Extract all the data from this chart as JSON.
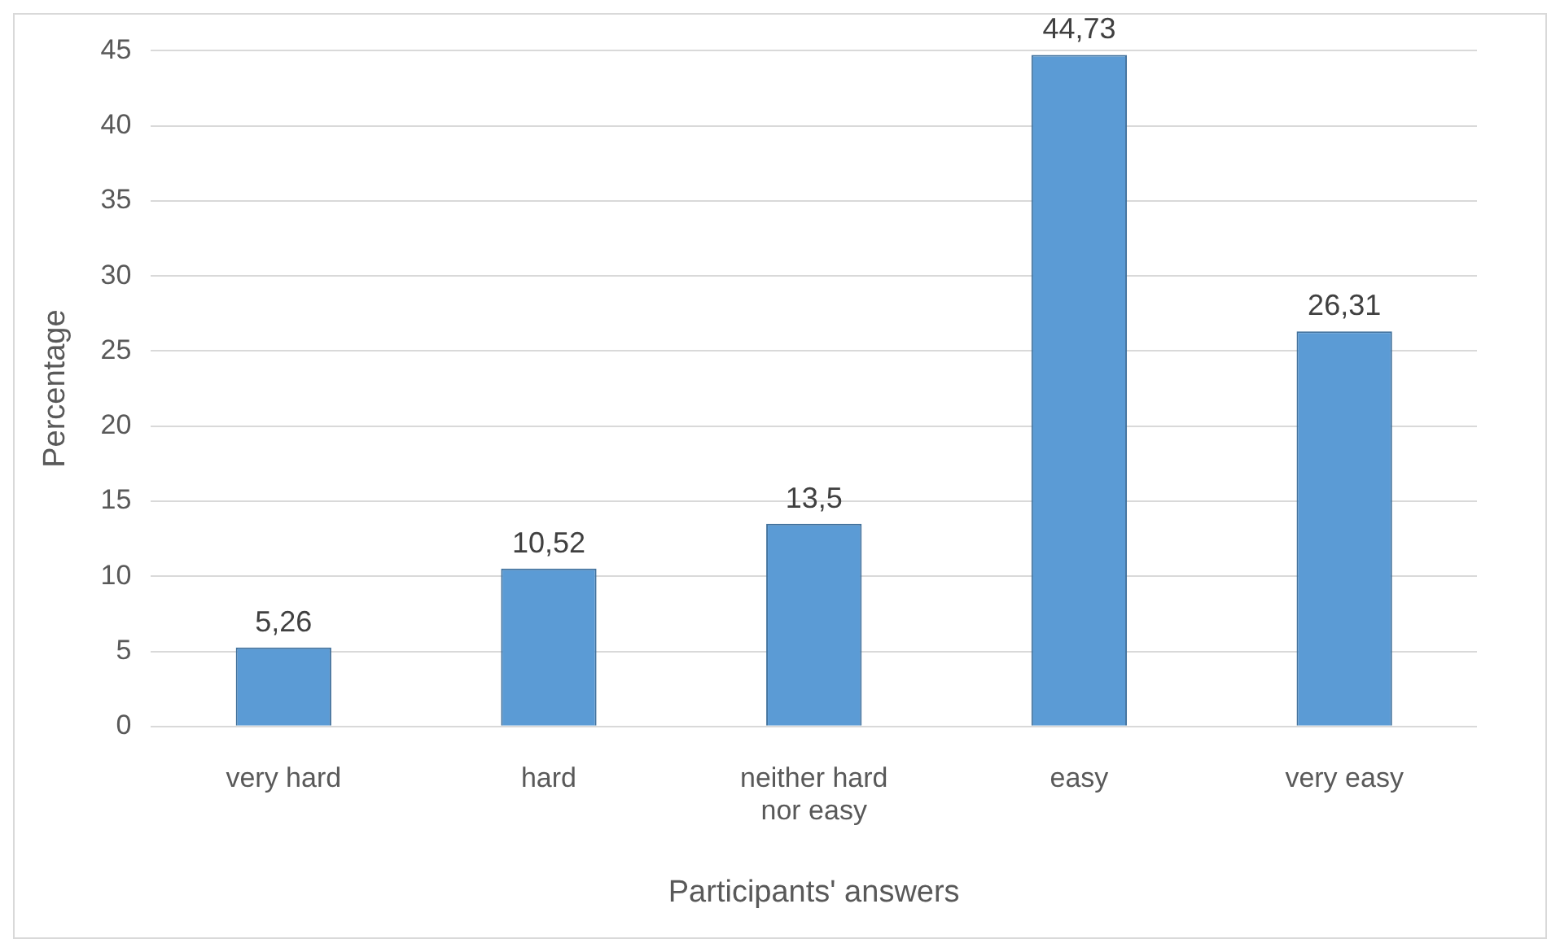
{
  "chart_data": {
    "type": "bar",
    "xlabel": "Participants' answers",
    "ylabel": "Percentage",
    "categories": [
      "very hard",
      "hard",
      "neither hard nor easy",
      "easy",
      "very easy"
    ],
    "values": [
      5.26,
      10.52,
      13.5,
      44.73,
      26.31
    ],
    "value_labels": [
      "5,26",
      "10,52",
      "13,5",
      "44,73",
      "26,31"
    ],
    "color": "#5b9bd5",
    "ylim": [
      0,
      45
    ],
    "yticks": [
      0,
      5,
      10,
      15,
      20,
      25,
      30,
      35,
      40,
      45
    ],
    "grid": "y",
    "legend": false
  }
}
